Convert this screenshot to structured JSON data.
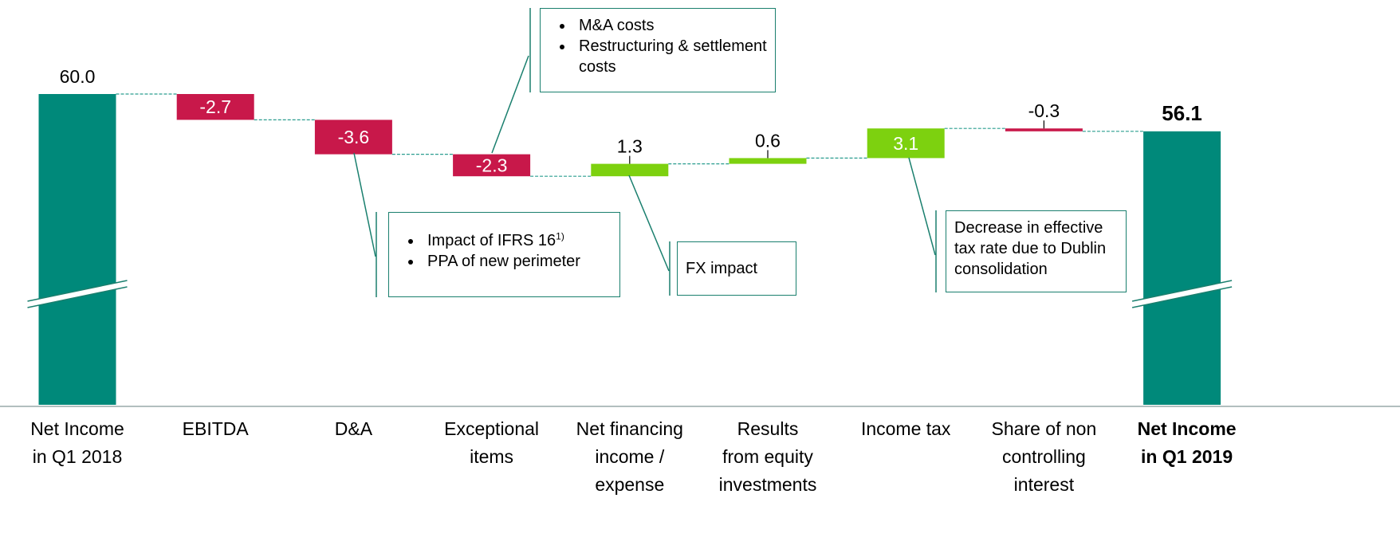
{
  "chart_data": {
    "type": "waterfall",
    "categories": [
      "Net Income\nin Q1 2018",
      "EBITDA",
      "D&A",
      "Exceptional\nitems",
      "Net financing\nincome /\nexpense",
      "Results\nfrom equity\ninvestments",
      "Income tax",
      "Share of non\ncontrolling\ninterest",
      "Net Income\nin Q1 2019"
    ],
    "values": [
      60.0,
      -2.7,
      -3.6,
      -2.3,
      1.3,
      0.6,
      3.1,
      -0.3,
      56.1
    ],
    "value_labels": [
      "60.0",
      "-2.7",
      "-3.6",
      "-2.3",
      "1.3",
      "0.6",
      "3.1",
      "-0.3",
      "56.1"
    ],
    "is_total": [
      true,
      false,
      false,
      false,
      false,
      false,
      false,
      false,
      true
    ],
    "bold": [
      false,
      false,
      false,
      false,
      false,
      false,
      false,
      false,
      true
    ],
    "colors": {
      "total": "#00897a",
      "increase": "#7dd10f",
      "decrease": "#c8184a"
    },
    "ylim": [
      27.5,
      64
    ],
    "axis_break": true,
    "annotations": [
      {
        "category": 3,
        "items": [
          "M&A costs",
          "Restructuring & settlement costs"
        ]
      },
      {
        "category": 2,
        "items": [
          "Impact of IFRS 16",
          "PPA of new perimeter"
        ],
        "footnote_mark": "1)"
      },
      {
        "category": 4,
        "text": "FX impact"
      },
      {
        "category": 6,
        "text": "Decrease in effective tax rate due to Dublin consolidation"
      }
    ]
  }
}
